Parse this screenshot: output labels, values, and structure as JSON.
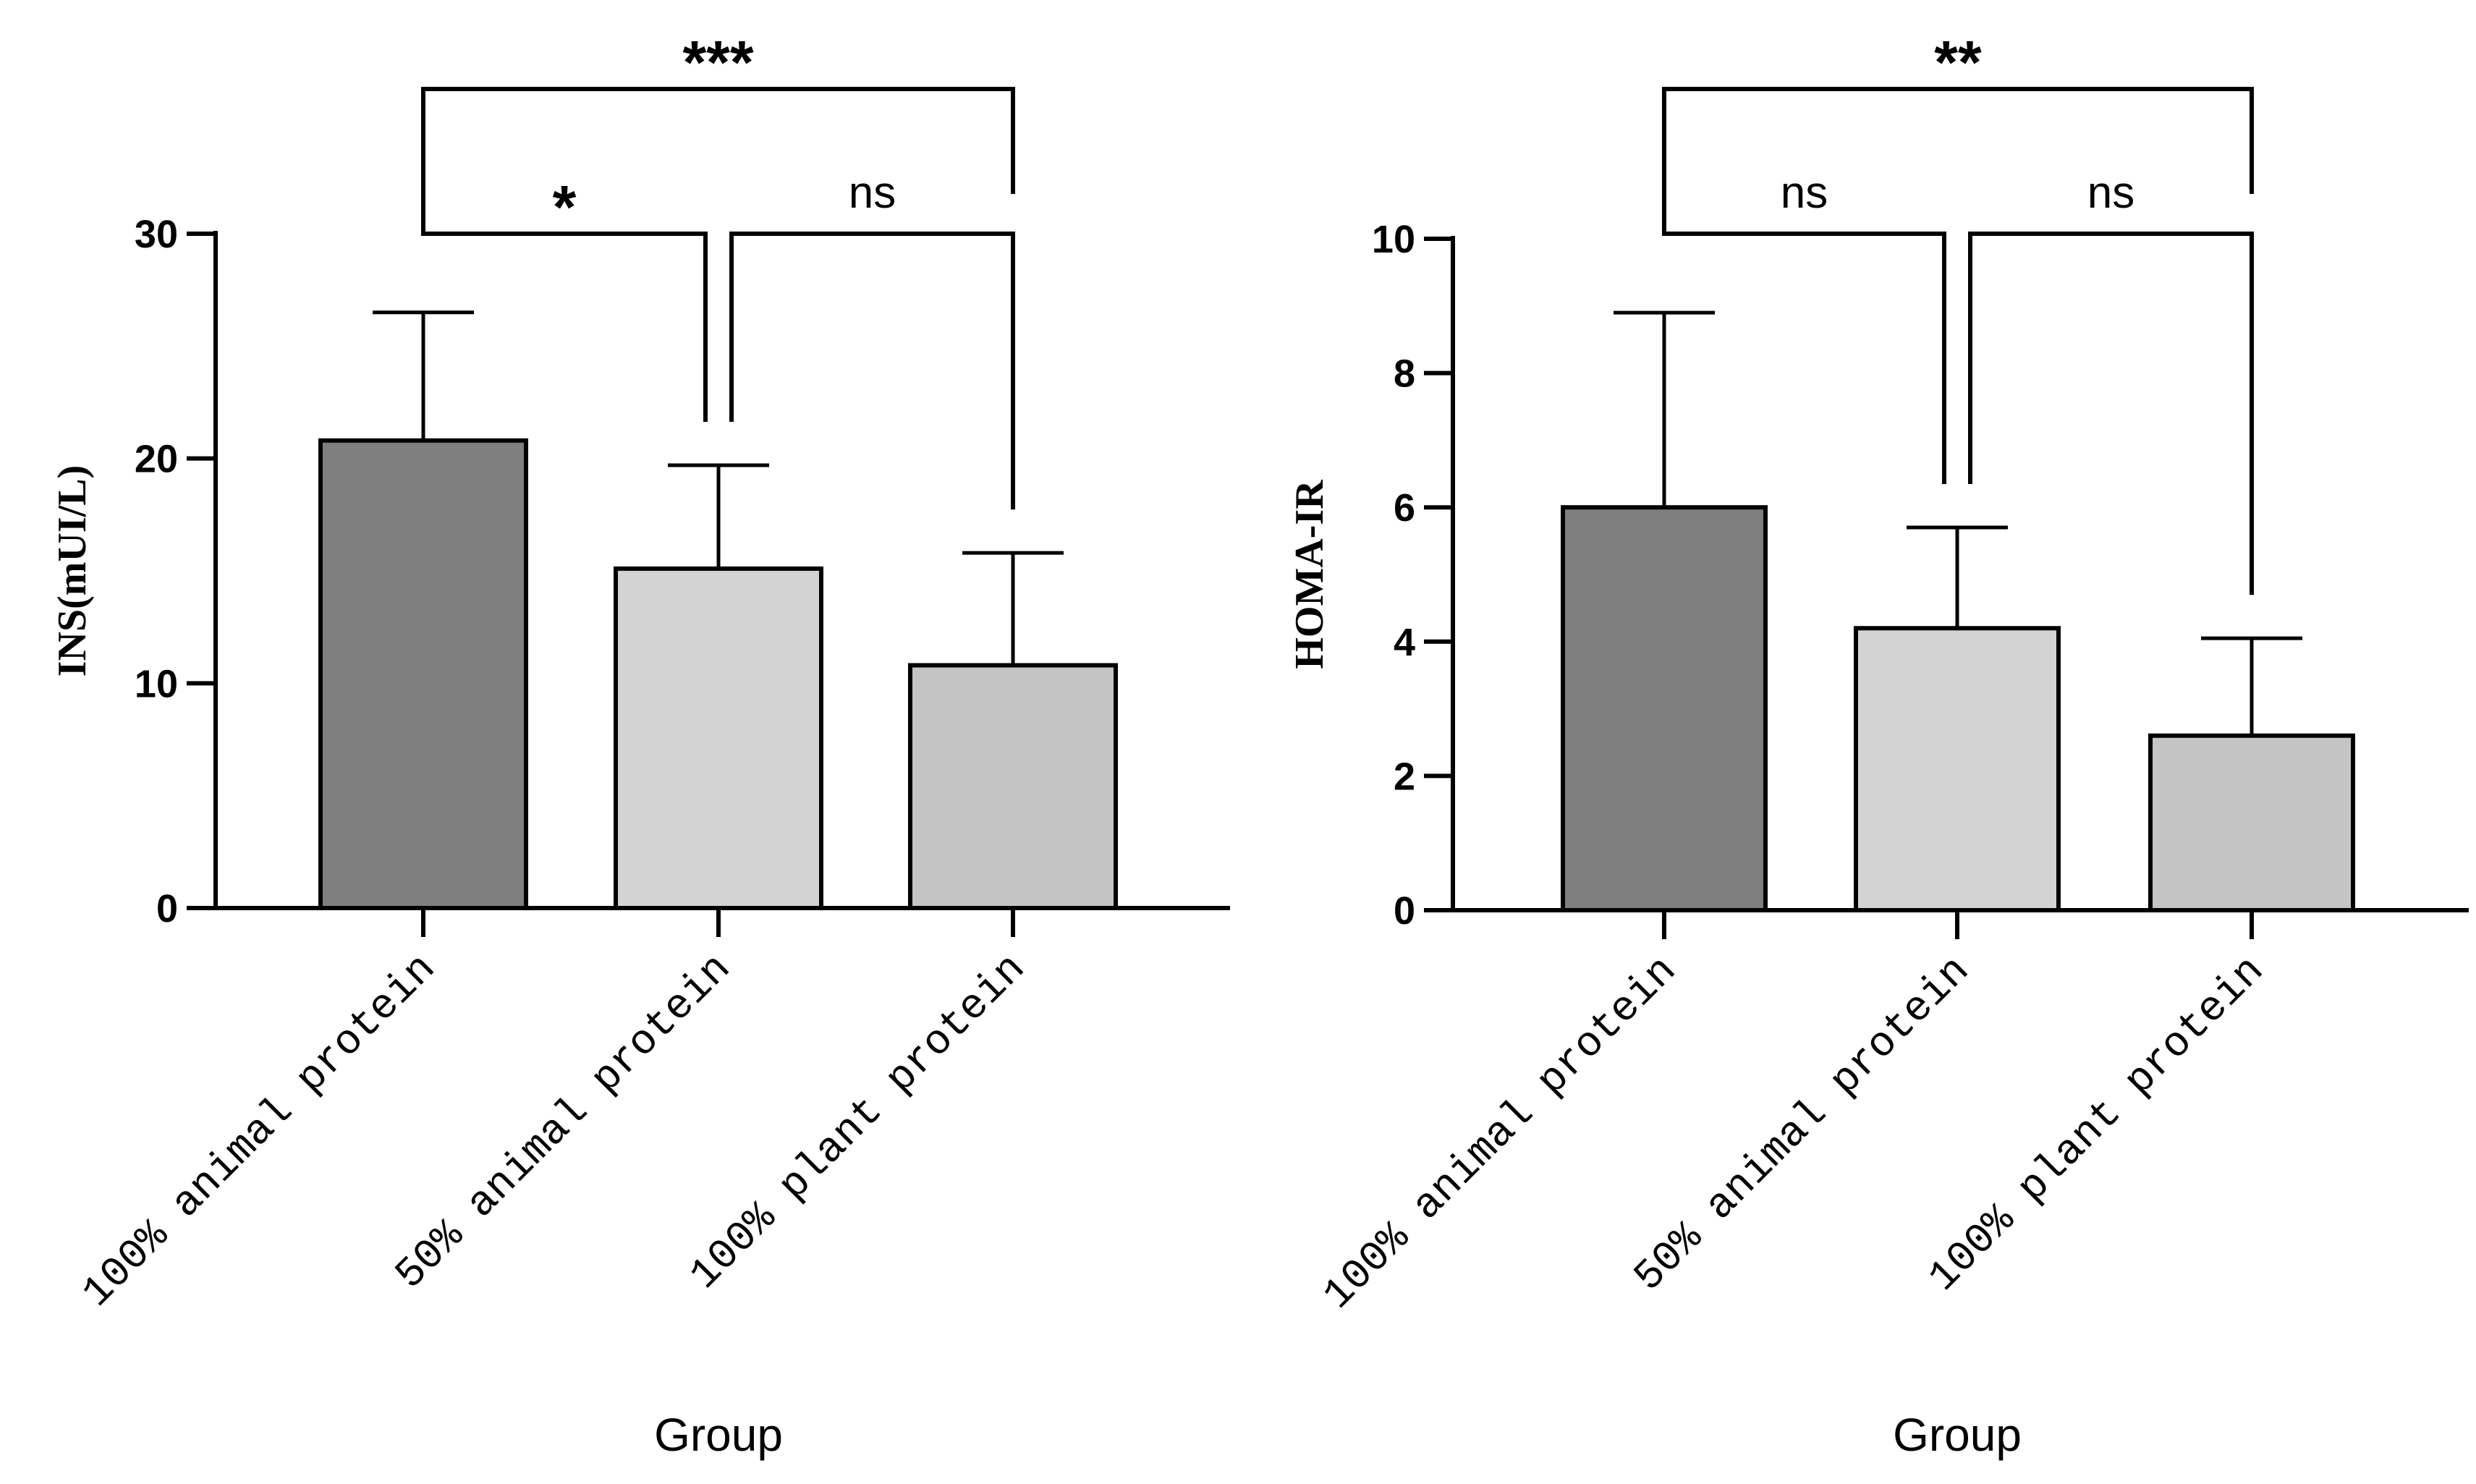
{
  "chart_data": [
    {
      "type": "bar",
      "ylabel": "INS(mUI/L)",
      "xlabel": "Group",
      "categories": [
        "100% animal protein",
        "50% animal protein",
        "100% plant protein"
      ],
      "values": [
        20.8,
        15.1,
        10.8
      ],
      "error_upper": [
        26.5,
        19.7,
        15.8
      ],
      "ylim": [
        0,
        30
      ],
      "yticks": [
        "0",
        "10",
        "20",
        "30"
      ],
      "ytick_values": [
        0,
        10,
        20,
        30
      ],
      "colors": [
        "#7f7f7f",
        "#d3d3d3",
        "#c4c4c4"
      ],
      "significance": [
        {
          "from": 0,
          "to": 1,
          "label": "*",
          "level": 1
        },
        {
          "from": 1,
          "to": 2,
          "label": "ns",
          "level": 1
        },
        {
          "from": 0,
          "to": 2,
          "label": "***",
          "level": 2
        }
      ]
    },
    {
      "type": "bar",
      "ylabel": "HOMA-IR",
      "xlabel": "Group",
      "categories": [
        "100% animal protein",
        "50% animal protein",
        "100% plant protein"
      ],
      "values": [
        6.0,
        4.2,
        2.6
      ],
      "error_upper": [
        8.9,
        5.7,
        4.05
      ],
      "ylim": [
        0,
        10
      ],
      "yticks": [
        "0",
        "2",
        "4",
        "6",
        "8",
        "10"
      ],
      "ytick_values": [
        0,
        2,
        4,
        6,
        8,
        10
      ],
      "colors": [
        "#7f7f7f",
        "#d3d3d3",
        "#c4c4c4"
      ],
      "significance": [
        {
          "from": 0,
          "to": 1,
          "label": "ns",
          "level": 1
        },
        {
          "from": 1,
          "to": 2,
          "label": "ns",
          "level": 1
        },
        {
          "from": 0,
          "to": 2,
          "label": "**",
          "level": 2
        }
      ]
    }
  ]
}
